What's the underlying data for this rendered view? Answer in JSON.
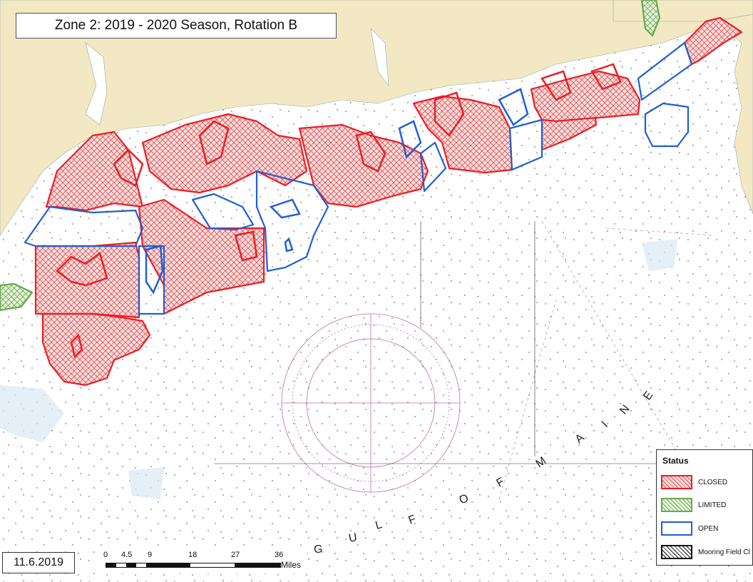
{
  "title": "Zone 2: 2019 - 2020 Season, Rotation B",
  "date": "11.6.2019",
  "scale_bar": {
    "ticks": [
      "0",
      "4.5",
      "9",
      "18",
      "27",
      "36"
    ],
    "unit": "Miles"
  },
  "legend": {
    "title": "Status",
    "items": [
      {
        "label": "CLOSED",
        "color": "#ee1c24"
      },
      {
        "label": "LIMITED",
        "color": "#6aa84f"
      },
      {
        "label": "OPEN",
        "color": "#1f5fd6"
      },
      {
        "label": "Mooring Field Cl",
        "color": "#111111"
      }
    ]
  },
  "water_label_letters": [
    "G",
    "U",
    "L",
    "F",
    "O",
    "F",
    "M",
    "A",
    "I",
    "N",
    "E"
  ],
  "colors": {
    "land": "#f3e8c4",
    "water": "#ffffff",
    "closed": "#ee1c24",
    "closed_fill": "#f6d2d2",
    "limited": "#6aa84f",
    "open": "#1f5fd6"
  }
}
